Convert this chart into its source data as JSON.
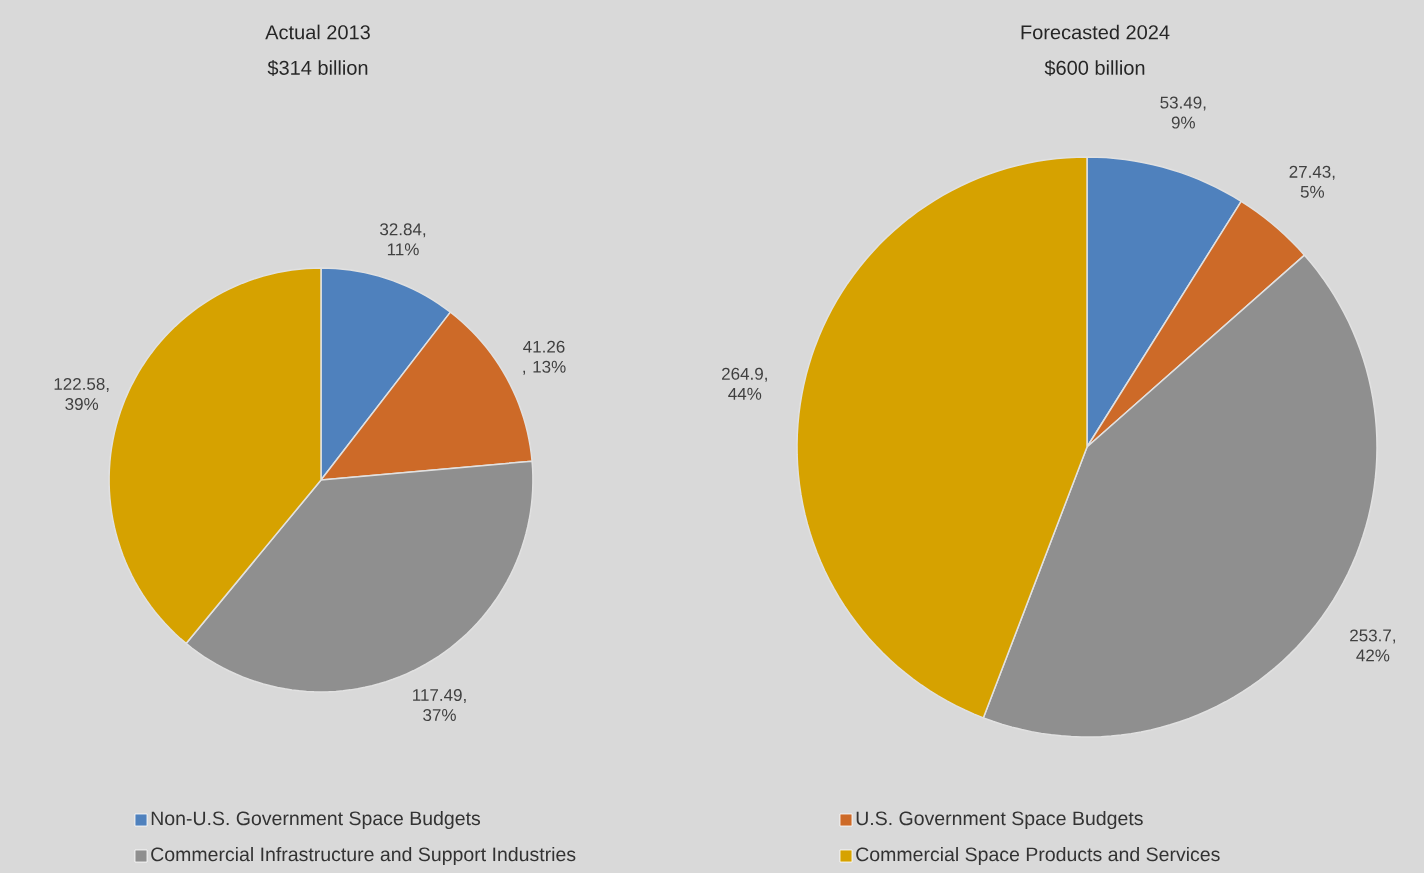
{
  "chart_data": [
    {
      "type": "pie",
      "title": "Actual 2013",
      "subtitle": "$314 billion",
      "categories": [
        "Non-U.S. Government Space Budgets",
        "U.S. Government Space Budgets",
        "Commercial Infrastructure and Support Industries",
        "Commercial Space Products and Services"
      ],
      "values": [
        32.84,
        41.26,
        117.49,
        122.58
      ],
      "colors": [
        "#4f81bd",
        "#cd6a28",
        "#8f8f8f",
        "#d6a200"
      ],
      "value_labels": [
        "32.84, 11%",
        "41.26 , 13%",
        "117.49, 37%",
        "122.58, 39%"
      ],
      "legend": "bottom"
    },
    {
      "type": "pie",
      "title": "Forecasted 2024",
      "subtitle": "$600 billion",
      "categories": [
        null,
        null,
        null,
        null
      ],
      "values": [
        53.49,
        27.43,
        253.7,
        264.9
      ],
      "colors": [
        "#4f81bd",
        "#cd6a28",
        "#8f8f8f",
        "#d6a200"
      ],
      "value_labels": [
        "53.49, 9%",
        "27.43, 5%",
        "253.7, 42%",
        "264.9, 44%"
      ]
    }
  ]
}
